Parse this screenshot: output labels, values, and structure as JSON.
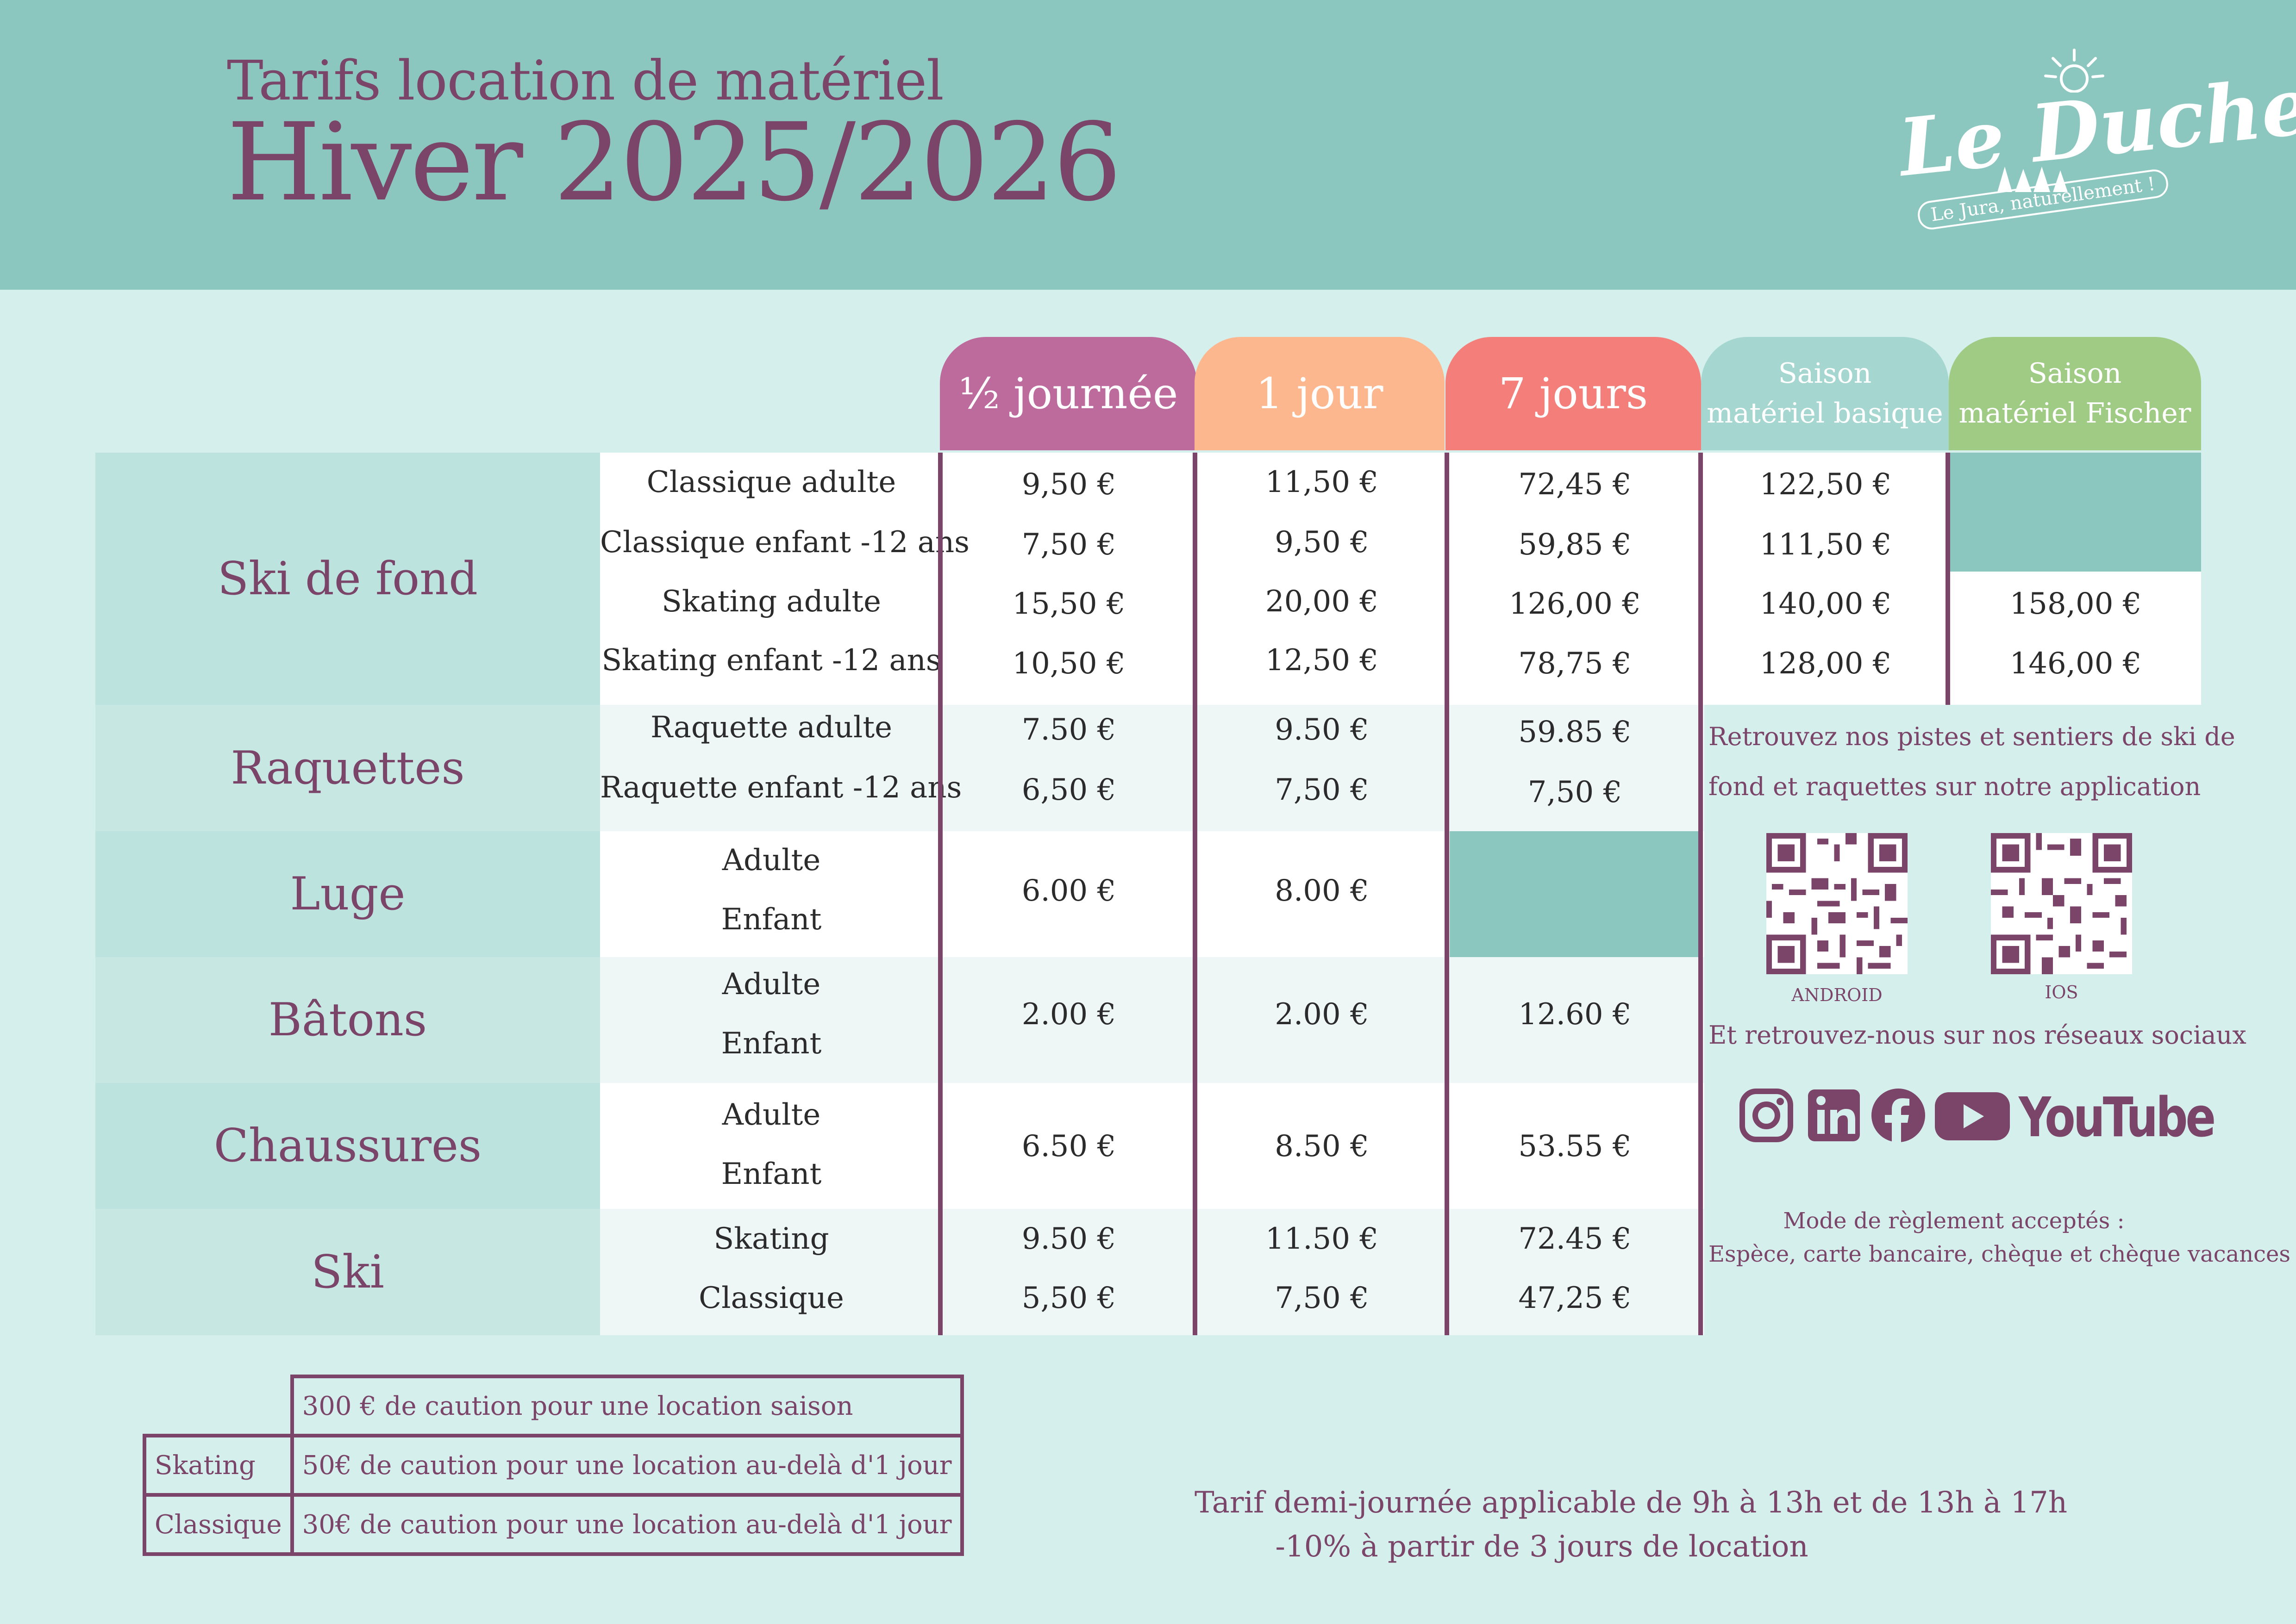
{
  "header": {
    "subtitle": "Tarifs location de matériel",
    "title": "Hiver 2025/2026",
    "logo_word": "Le Duchet",
    "logo_tagline": "Le Jura, naturellement !"
  },
  "columns": {
    "half_day": "½ journée",
    "one_day": "1 jour",
    "seven_days": "7 jours",
    "season_basic_1": "Saison",
    "season_basic_2": "matériel basique",
    "season_fischer_1": "Saison",
    "season_fischer_2": "matériel Fischer"
  },
  "colors": {
    "half_day": "#bd6b9c",
    "one_day": "#fdb78f",
    "seven_days": "#f47f7a",
    "season_basic": "#a5d7d0",
    "season_fischer": "#9fcb84",
    "band": "#8bc7bf",
    "accent": "#7a4569"
  },
  "categories": {
    "ski_fond": {
      "label": "Ski de fond",
      "rows": [
        {
          "name": "Classique adulte",
          "half": "9,50 €",
          "day": "11,50 €",
          "week": "72,45 €",
          "season": "122,50 €",
          "fischer": ""
        },
        {
          "name": "Classique enfant -12 ans",
          "half": "7,50 €",
          "day": "9,50 €",
          "week": "59,85 €",
          "season": "111,50 €",
          "fischer": ""
        },
        {
          "name": "Skating adulte",
          "half": "15,50 €",
          "day": "20,00 €",
          "week": "126,00 €",
          "season": "140,00 €",
          "fischer": "158,00 €"
        },
        {
          "name": "Skating enfant -12 ans",
          "half": "10,50 €",
          "day": "12,50 €",
          "week": "78,75 €",
          "season": "128,00 €",
          "fischer": "146,00 €"
        }
      ]
    },
    "raquettes": {
      "label": "Raquettes",
      "rows": [
        {
          "name": "Raquette adulte",
          "half": "7.50 €",
          "day": "9.50 €",
          "week": "59.85 €"
        },
        {
          "name": "Raquette enfant -12 ans",
          "half": "6,50 €",
          "day": "7,50 €",
          "week": "7,50 €"
        }
      ]
    },
    "luge": {
      "label": "Luge",
      "sub1": "Adulte",
      "sub2": "Enfant",
      "half": "6.00 €",
      "day": "8.00 €"
    },
    "batons": {
      "label": "Bâtons",
      "sub1": "Adulte",
      "sub2": "Enfant",
      "half": "2.00 €",
      "day": "2.00 €",
      "week": "12.60 €"
    },
    "chaussures": {
      "label": "Chaussures",
      "sub1": "Adulte",
      "sub2": "Enfant",
      "half": "6.50 €",
      "day": "8.50 €",
      "week": "53.55 €"
    },
    "ski": {
      "label": "Ski",
      "rows": [
        {
          "name": "Skating",
          "half": "9.50 €",
          "day": "11.50 €",
          "week": "72.45 €"
        },
        {
          "name": "Classique",
          "half": "5,50 €",
          "day": "7,50 €",
          "week": "47,25 €"
        }
      ]
    }
  },
  "side": {
    "app_line1": "Retrouvez nos pistes et sentiers de ski de",
    "app_line2": "fond et raquettes sur notre application",
    "android": "ANDROID",
    "ios": "IOS",
    "social_text": "Et retrouvez-nous sur nos réseaux sociaux",
    "youtube": "YouTube",
    "payment_title": "Mode de règlement acceptés :",
    "payment_methods": "Espèce, carte bancaire, chèque et chèque vacances",
    "icons": [
      "instagram-icon",
      "linkedin-icon",
      "facebook-icon",
      "youtube-icon"
    ]
  },
  "deposit": {
    "row1_value": "300 € de caution pour une location saison",
    "row2_label": "Skating",
    "row2_value": "50€ de caution pour une location au-delà d'1 jour",
    "row3_label": "Classique",
    "row3_value": "30€ de caution pour une location au-delà d'1 jour"
  },
  "footnote": {
    "line1": "Tarif demi-journée applicable de 9h à 13h et de 13h à 17h",
    "line2": "-10% à partir de 3 jours de location"
  }
}
